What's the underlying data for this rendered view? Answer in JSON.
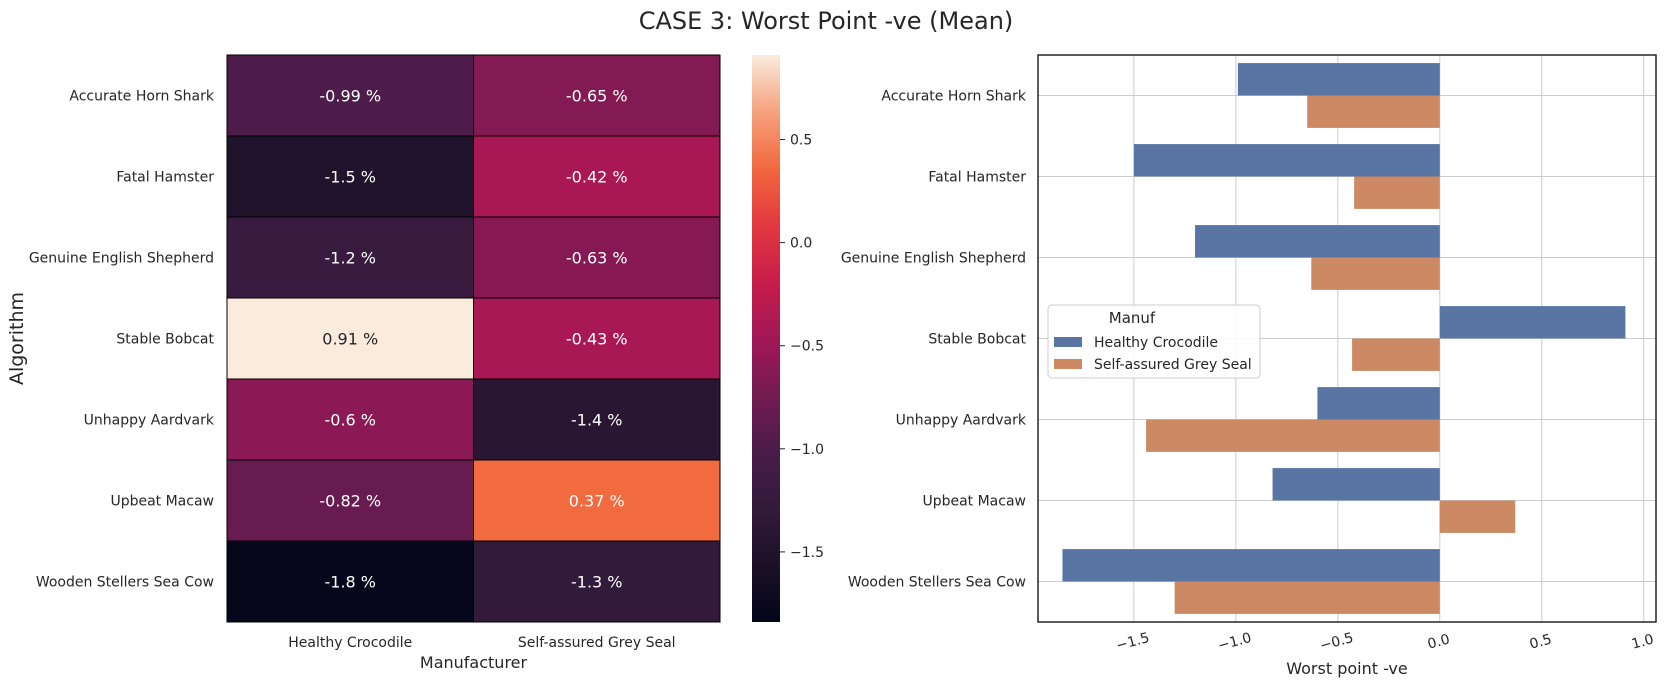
{
  "title": "CASE 3: Worst Point -ve (Mean)",
  "colors": {
    "blue": "#5875a4",
    "orange": "#cc8963",
    "grid": "#cccccc",
    "frame": "#262626",
    "text": "#262626"
  },
  "chart_data": [
    {
      "type": "heatmap",
      "xlabel": "Manufacturer",
      "ylabel": "Algorithm",
      "columns": [
        "Healthy Crocodile",
        "Self-assured Grey Seal"
      ],
      "rows": [
        "Accurate Horn Shark",
        "Fatal Hamster",
        "Genuine English Shepherd",
        "Stable Bobcat",
        "Unhappy Aardvark",
        "Upbeat Macaw",
        "Wooden Stellers Sea Cow"
      ],
      "values": [
        [
          -0.99,
          -0.65
        ],
        [
          -1.5,
          -0.42
        ],
        [
          -1.2,
          -0.63
        ],
        [
          0.91,
          -0.43
        ],
        [
          -0.6,
          -1.4
        ],
        [
          -0.82,
          0.37
        ],
        [
          -1.8,
          -1.3
        ]
      ],
      "cell_labels": [
        [
          "-0.99 %",
          "-0.65 %"
        ],
        [
          "-1.5 %",
          "-0.42 %"
        ],
        [
          "-1.2 %",
          "-0.63 %"
        ],
        [
          "0.91 %",
          "-0.43 %"
        ],
        [
          "-0.6 %",
          "-1.4 %"
        ],
        [
          "-0.82 %",
          "0.37 %"
        ],
        [
          "-1.8 %",
          "-1.3 %"
        ]
      ],
      "colormap": "rocket",
      "color_range": [
        -1.84,
        0.91
      ],
      "colorbar_ticks": [
        0.5,
        0.0,
        -0.5,
        -1.0,
        -1.5
      ],
      "colorbar_tick_labels": [
        "0.5",
        "0.0",
        "−0.5",
        "−1.0",
        "−1.5"
      ]
    },
    {
      "type": "bar",
      "orientation": "horizontal",
      "categories": [
        "Accurate Horn Shark",
        "Fatal Hamster",
        "Genuine English Shepherd",
        "Stable Bobcat",
        "Unhappy Aardvark",
        "Upbeat Macaw",
        "Wooden Stellers Sea Cow"
      ],
      "series": [
        {
          "name": "Healthy Crocodile",
          "values": [
            -0.99,
            -1.5,
            -1.2,
            0.91,
            -0.6,
            -0.82,
            -1.85
          ],
          "color": "#5875a4"
        },
        {
          "name": "Self-assured Grey Seal",
          "values": [
            -0.65,
            -0.42,
            -0.63,
            -0.43,
            -1.44,
            0.37,
            -1.3
          ],
          "color": "#cc8963"
        }
      ],
      "xlabel": "Worst point -ve",
      "ylabel": "",
      "xlim": [
        -1.97,
        1.06
      ],
      "xticks": [
        -1.5,
        -1.0,
        -0.5,
        0.0,
        0.5,
        1.0
      ],
      "xtick_labels": [
        "−1.5",
        "−1.0",
        "−0.5",
        "0.0",
        "0.5",
        "1.0"
      ],
      "grid": true,
      "legend": {
        "title": "Manuf",
        "placement": "center-left"
      }
    }
  ]
}
